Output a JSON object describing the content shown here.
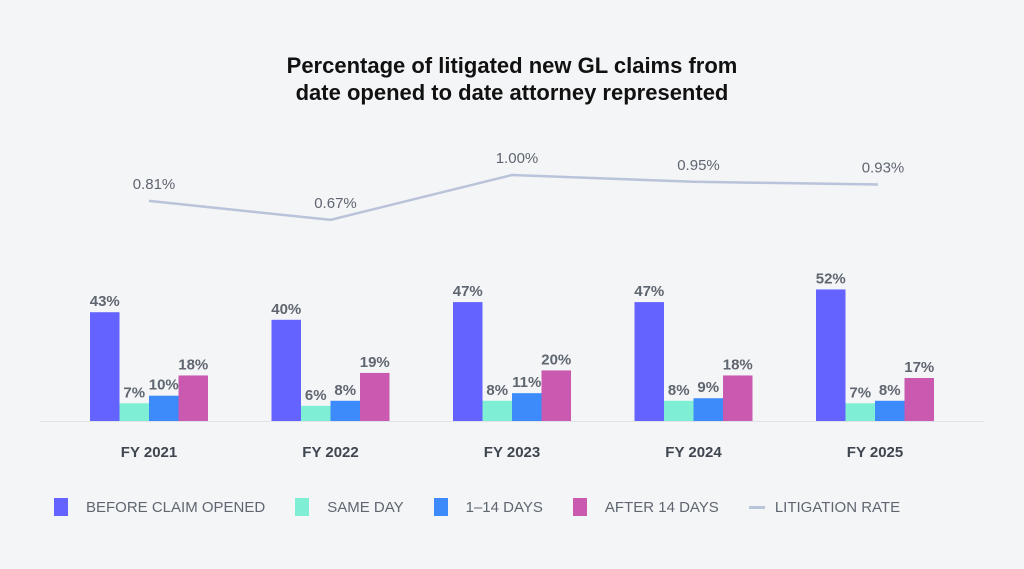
{
  "chart_data": {
    "type": "bar",
    "title": [
      "Percentage of litigated new GL claims from",
      "date opened to date attorney represented"
    ],
    "categories": [
      "FY 2021",
      "FY 2022",
      "FY 2023",
      "FY 2024",
      "FY 2025"
    ],
    "series": [
      {
        "name": "BEFORE CLAIM OPENED",
        "color": "#6563ff",
        "values": [
          43,
          40,
          47,
          47,
          52
        ]
      },
      {
        "name": "SAME DAY",
        "color": "#7eefd4",
        "values": [
          7,
          6,
          8,
          8,
          7
        ]
      },
      {
        "name": "1–14 DAYS",
        "color": "#3d8bfb",
        "values": [
          10,
          8,
          11,
          9,
          8
        ]
      },
      {
        "name": "AFTER 14 DAYS",
        "color": "#c95ab0",
        "values": [
          18,
          19,
          20,
          18,
          17
        ]
      }
    ],
    "line_series": {
      "name": "LITIGATION RATE",
      "color": "#b9c3d9",
      "values": [
        0.81,
        0.67,
        1.0,
        0.95,
        0.93
      ],
      "labels": [
        "0.81%",
        "0.67%",
        "1.00%",
        "0.95%",
        "0.93%"
      ]
    },
    "value_suffix": "%",
    "legend_position": "bottom",
    "grid": false
  }
}
